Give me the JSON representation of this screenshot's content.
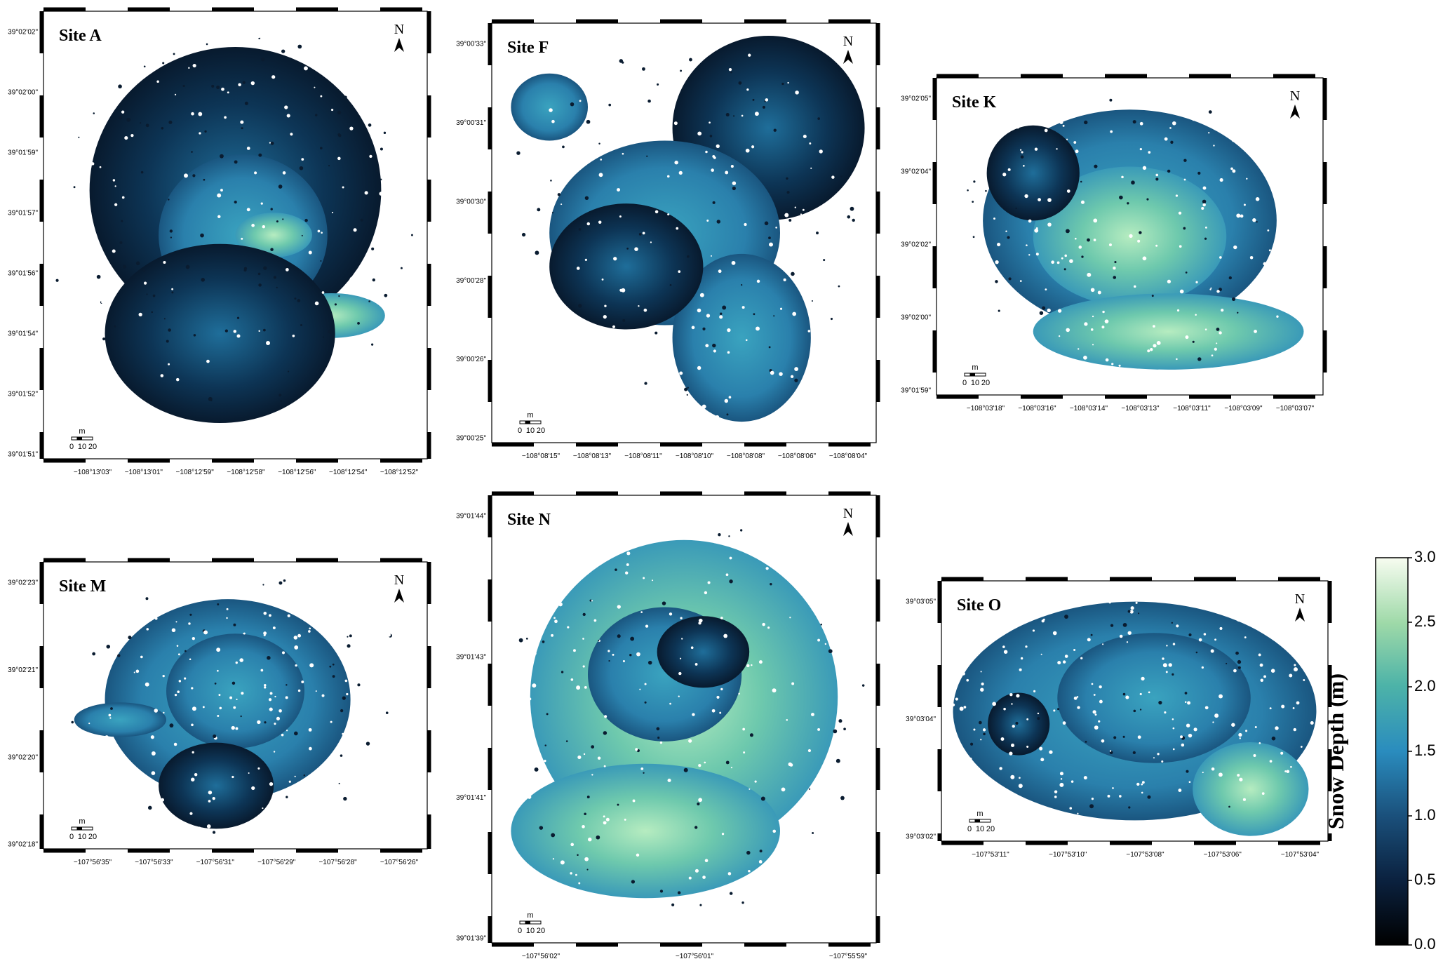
{
  "panels": [
    {
      "title": "Site A",
      "lat": [
        "39°02'02\"",
        "39°02'00\"",
        "39°01'59\"",
        "39°01'57\"",
        "39°01'56\"",
        "39°01'54\"",
        "39°01'52\"",
        "39°01'51\""
      ],
      "lon": [
        "−108°13'03\"",
        "−108°13'01\"",
        "−108°12'59\"",
        "−108°12'58\"",
        "−108°12'56\"",
        "−108°12'54\"",
        "−108°12'52\""
      ],
      "north": "N",
      "scale_unit": "m",
      "scale_ticks": [
        0,
        10,
        20
      ]
    },
    {
      "title": "Site F",
      "lat": [
        "39°00'33\"",
        "39°00'31\"",
        "39°00'30\"",
        "39°00'28\"",
        "39°00'26\"",
        "39°00'25\""
      ],
      "lon": [
        "−108°08'15\"",
        "−108°08'13\"",
        "−108°08'11\"",
        "−108°08'10\"",
        "−108°08'08\"",
        "−108°08'06\"",
        "−108°08'04\""
      ],
      "north": "N",
      "scale_unit": "m",
      "scale_ticks": [
        0,
        10,
        20
      ]
    },
    {
      "title": "Site K",
      "lat": [
        "39°02'05\"",
        "39°02'04\"",
        "39°02'02\"",
        "39°02'00\"",
        "39°01'59\""
      ],
      "lon": [
        "−108°03'18\"",
        "−108°03'16\"",
        "−108°03'14\"",
        "−108°03'13\"",
        "−108°03'11\"",
        "−108°03'09\"",
        "−108°03'07\""
      ],
      "north": "N",
      "scale_unit": "m",
      "scale_ticks": [
        0,
        10,
        20
      ]
    },
    {
      "title": "Site M",
      "lat": [
        "39°02'23\"",
        "39°02'21\"",
        "39°02'20\"",
        "39°02'18\""
      ],
      "lon": [
        "−107°56'35\"",
        "−107°56'33\"",
        "−107°56'31\"",
        "−107°56'29\"",
        "−107°56'28\"",
        "−107°56'26\""
      ],
      "north": "N",
      "scale_unit": "m",
      "scale_ticks": [
        0,
        10,
        20
      ]
    },
    {
      "title": "Site N",
      "lat": [
        "39°01'44\"",
        "39°01'43\"",
        "39°01'41\"",
        "39°01'39\""
      ],
      "lon": [
        "−107°56'02\"",
        "−107°56'01\"",
        "−107°55'59\""
      ],
      "north": "N",
      "scale_unit": "m",
      "scale_ticks": [
        0,
        10,
        20
      ]
    },
    {
      "title": "Site O",
      "lat": [
        "39°03'05\"",
        "39°03'04\"",
        "39°03'02\""
      ],
      "lon": [
        "−107°53'11\"",
        "−107°53'10\"",
        "−107°53'08\"",
        "−107°53'06\"",
        "−107°53'04\""
      ],
      "north": "N",
      "scale_unit": "m",
      "scale_ticks": [
        0,
        10,
        20
      ]
    }
  ],
  "colorbar": {
    "label": "Snow Depth (m)",
    "lim": [
      0,
      3
    ],
    "ticks": [
      {
        "value": 0,
        "label": "0.0"
      },
      {
        "value": 0.5,
        "label": "0.5"
      },
      {
        "value": 1,
        "label": "1.0"
      },
      {
        "value": 1.5,
        "label": "1.5"
      },
      {
        "value": 2,
        "label": "2.0"
      },
      {
        "value": 2.5,
        "label": "2.5"
      },
      {
        "value": 3,
        "label": "3.0"
      }
    ]
  }
}
